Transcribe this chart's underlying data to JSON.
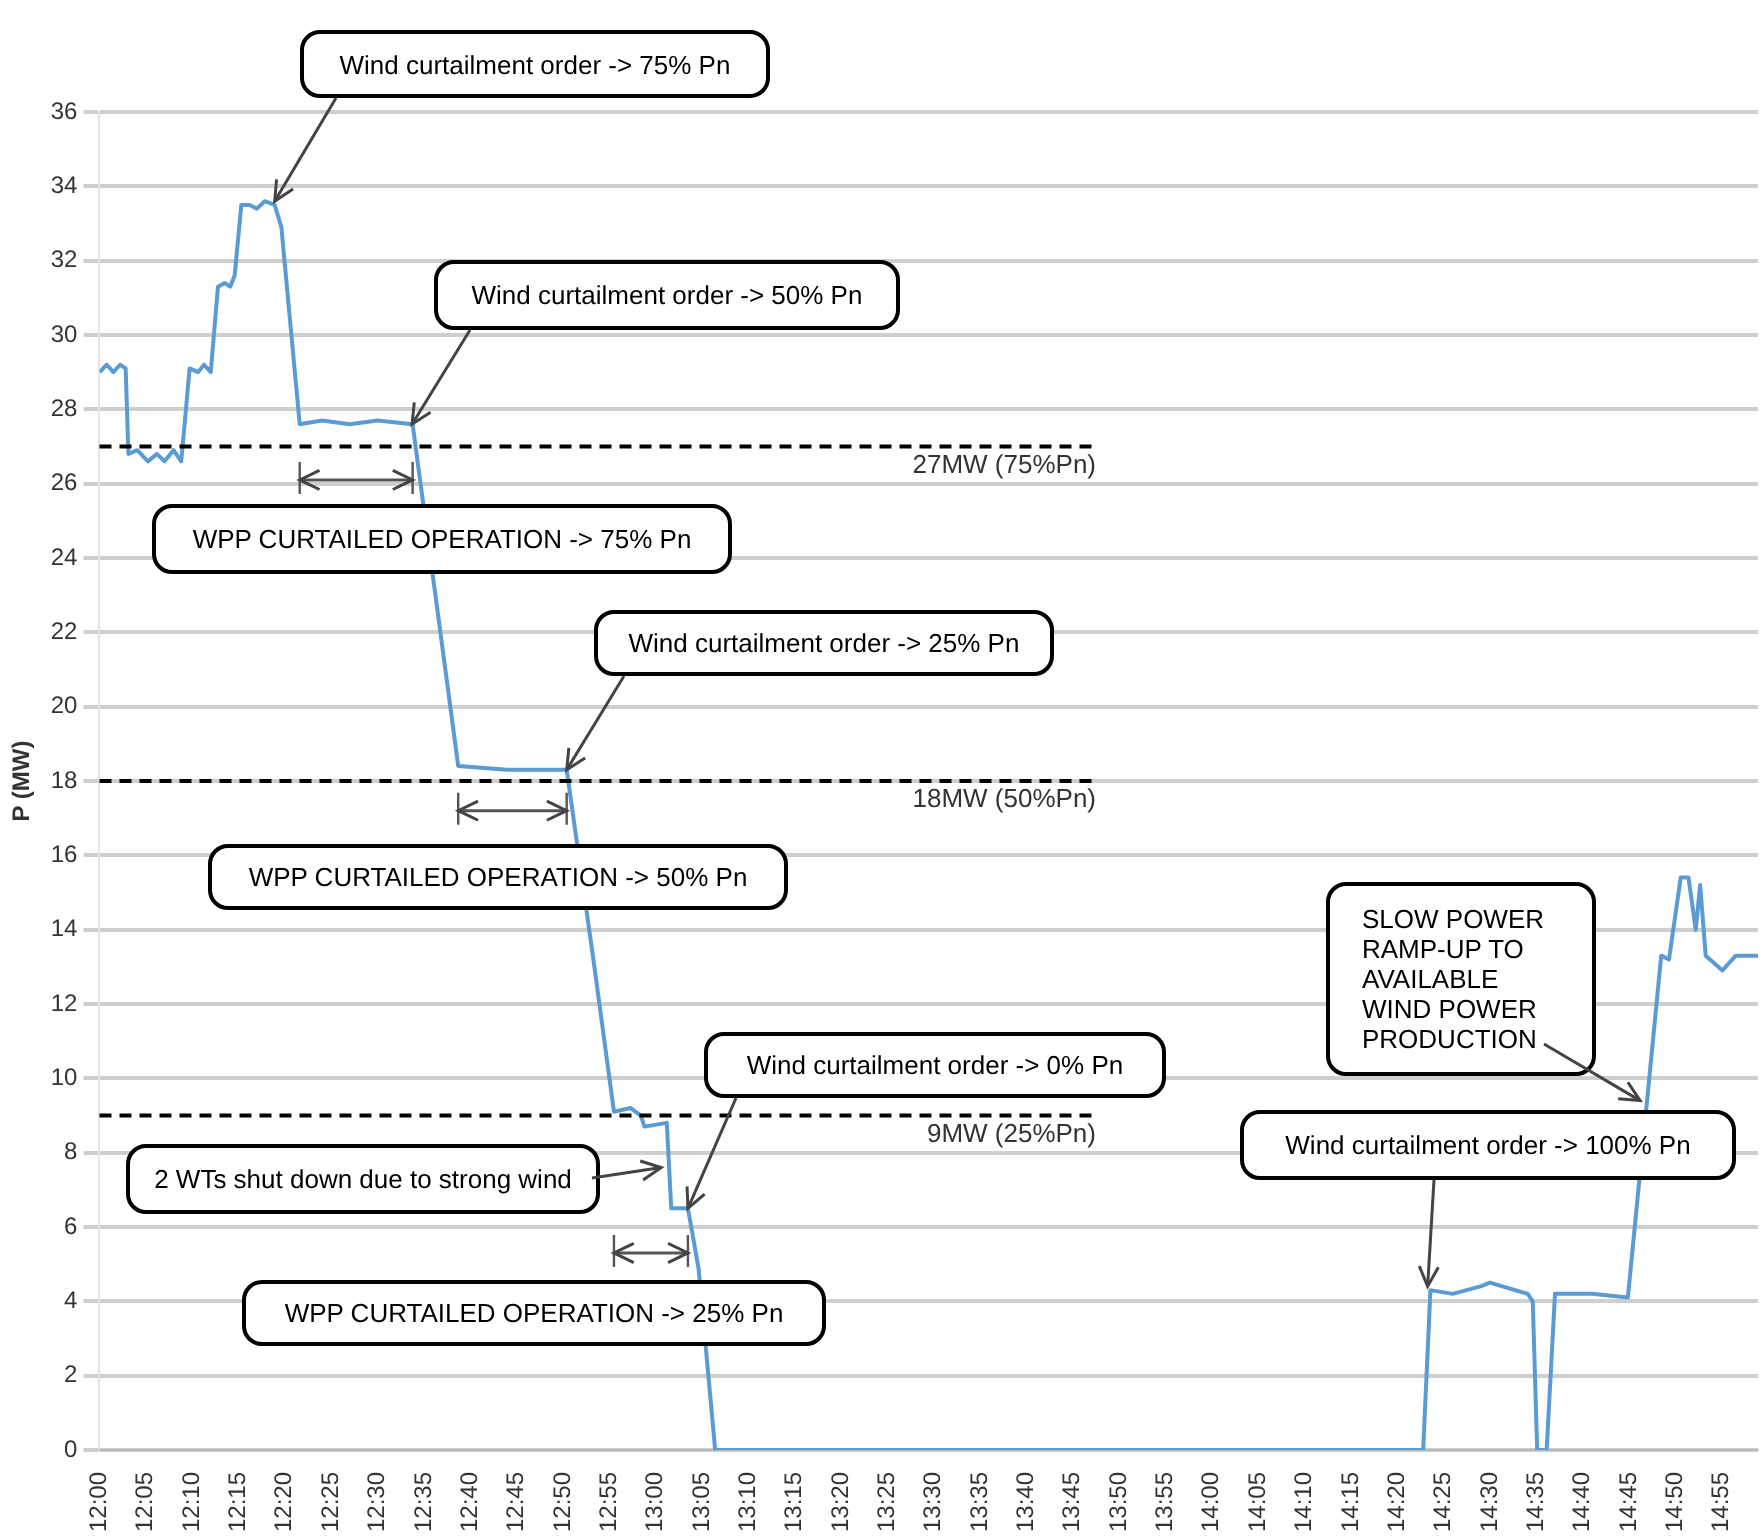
{
  "chart_data": {
    "type": "line",
    "ylabel": "P (MW)",
    "x": [
      12.0,
      12.013,
      12.025,
      12.037,
      12.047,
      12.052,
      12.068,
      12.087,
      12.103,
      12.117,
      12.133,
      12.147,
      12.162,
      12.177,
      12.188,
      12.2,
      12.213,
      12.225,
      12.235,
      12.243,
      12.255,
      12.27,
      12.283,
      12.297,
      12.315,
      12.327,
      12.36,
      12.4,
      12.45,
      12.5,
      12.563,
      12.645,
      12.733,
      12.84,
      12.888,
      12.925,
      12.955,
      12.973,
      12.98,
      13.02,
      13.028,
      13.058,
      13.077,
      13.107,
      14.38,
      14.393,
      14.433,
      14.483,
      14.5,
      14.568,
      14.577,
      14.585,
      14.602,
      14.617,
      14.683,
      14.748,
      14.808,
      14.822,
      14.843,
      14.857,
      14.87,
      14.878,
      14.888,
      14.918,
      14.942,
      14.982
    ],
    "series": [
      {
        "color": "#5b9bd5",
        "values": [
          29.0,
          29.2,
          29.0,
          29.2,
          29.1,
          26.8,
          26.9,
          26.6,
          26.8,
          26.6,
          26.9,
          26.6,
          29.1,
          29.0,
          29.2,
          29.0,
          31.3,
          31.4,
          31.3,
          31.6,
          33.5,
          33.5,
          33.4,
          33.6,
          33.5,
          32.9,
          27.6,
          27.7,
          27.6,
          27.7,
          27.6,
          18.4,
          18.3,
          18.3,
          13.2,
          9.1,
          9.2,
          9.0,
          8.7,
          8.8,
          6.5,
          6.5,
          4.9,
          0,
          0,
          4.3,
          4.2,
          4.4,
          4.5,
          4.2,
          4.0,
          0,
          0,
          4.2,
          4.2,
          4.1,
          13.3,
          13.2,
          15.4,
          15.4,
          14.0,
          15.2,
          13.3,
          12.9,
          13.3,
          13.3
        ]
      }
    ],
    "xlim": [
      12,
      14.982
    ],
    "xticks": [
      {
        "value": 12,
        "label": "12:00"
      },
      {
        "value": 12.0833,
        "label": "12:05"
      },
      {
        "value": 12.1667,
        "label": "12:10"
      },
      {
        "value": 12.25,
        "label": "12:15"
      },
      {
        "value": 12.3333,
        "label": "12:20"
      },
      {
        "value": 12.4167,
        "label": "12:25"
      },
      {
        "value": 12.5,
        "label": "12:30"
      },
      {
        "value": 12.5833,
        "label": "12:35"
      },
      {
        "value": 12.6667,
        "label": "12:40"
      },
      {
        "value": 12.75,
        "label": "12:45"
      },
      {
        "value": 12.8333,
        "label": "12:50"
      },
      {
        "value": 12.9167,
        "label": "12:55"
      },
      {
        "value": 13,
        "label": "13:00"
      },
      {
        "value": 13.0833,
        "label": "13:05"
      },
      {
        "value": 13.1667,
        "label": "13:10"
      },
      {
        "value": 13.25,
        "label": "13:15"
      },
      {
        "value": 13.3333,
        "label": "13:20"
      },
      {
        "value": 13.4167,
        "label": "13:25"
      },
      {
        "value": 13.5,
        "label": "13:30"
      },
      {
        "value": 13.5833,
        "label": "13:35"
      },
      {
        "value": 13.6667,
        "label": "13:40"
      },
      {
        "value": 13.75,
        "label": "13:45"
      },
      {
        "value": 13.8333,
        "label": "13:50"
      },
      {
        "value": 13.9167,
        "label": "13:55"
      },
      {
        "value": 14,
        "label": "14:00"
      },
      {
        "value": 14.0833,
        "label": "14:05"
      },
      {
        "value": 14.1667,
        "label": "14:10"
      },
      {
        "value": 14.25,
        "label": "14:15"
      },
      {
        "value": 14.3333,
        "label": "14:20"
      },
      {
        "value": 14.4167,
        "label": "14:25"
      },
      {
        "value": 14.5,
        "label": "14:30"
      },
      {
        "value": 14.5833,
        "label": "14:35"
      },
      {
        "value": 14.6667,
        "label": "14:40"
      },
      {
        "value": 14.75,
        "label": "14:45"
      },
      {
        "value": 14.8333,
        "label": "14:50"
      },
      {
        "value": 14.9167,
        "label": "14:55"
      }
    ],
    "ylim": [
      0,
      36
    ],
    "yticks": [
      0,
      2,
      4,
      6,
      8,
      10,
      12,
      14,
      16,
      18,
      20,
      22,
      24,
      26,
      28,
      30,
      32,
      34,
      36
    ],
    "grid": "y",
    "legend": false,
    "marker": "none",
    "line_style": "solid",
    "ref_lines": [
      {
        "axis": "y",
        "value": 27,
        "label": "27MW (75%Pn)",
        "color": "#000000",
        "line_style": "dashed"
      },
      {
        "axis": "y",
        "value": 18,
        "label": "18MW (50%Pn)",
        "color": "#000000",
        "line_style": "dashed"
      },
      {
        "axis": "y",
        "value": 9,
        "label": "9MW (25%Pn)",
        "color": "#000000",
        "line_style": "dashed"
      }
    ],
    "annotations": [
      {
        "text": "Wind curtailment order -> 75% Pn",
        "x": 12.315,
        "y": 33.6
      },
      {
        "text": "Wind curtailment order -> 50% Pn",
        "x": 12.562,
        "y": 27.6
      },
      "WPP CURTAILED OPERATION -> 75% Pn",
      {
        "text": "Wind curtailment order -> 25% Pn",
        "x": 12.84,
        "y": 18.3
      },
      "WPP CURTAILED OPERATION -> 50% Pn",
      {
        "text": "Wind curtailment order -> 0% Pn",
        "x": 13.058,
        "y": 6.5
      },
      {
        "text": "2 WTs shut down due to strong wind",
        "x": 13.01,
        "y": 7.6
      },
      "WPP CURTAILED OPERATION -> 25% Pn",
      {
        "text": "Wind curtailment order -> 100% Pn",
        "x": 14.388,
        "y": 4.4
      },
      {
        "text": "SLOW POWER RAMP-UP TO AVAILABLE WIND POWER PRODUCTION",
        "x": 14.77,
        "y": 9.4
      }
    ]
  }
}
